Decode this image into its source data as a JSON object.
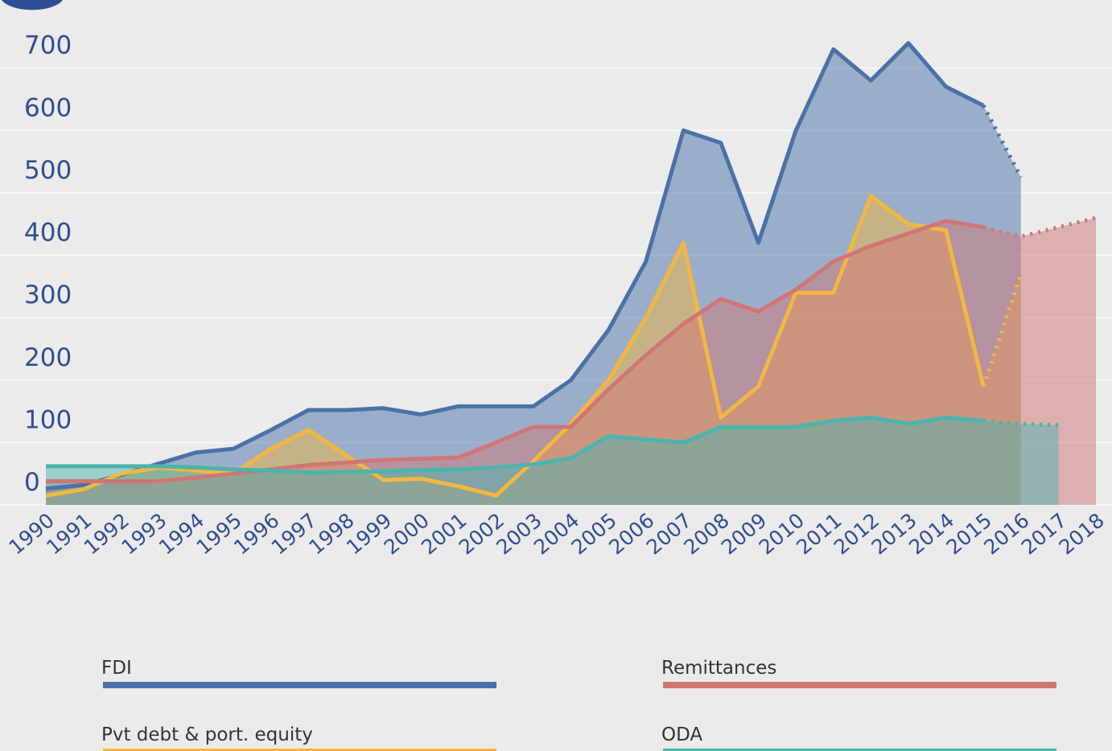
{
  "chart_data": {
    "type": "area-line",
    "categories": [
      "1990",
      "1991",
      "1992",
      "1993",
      "1994",
      "1995",
      "1996",
      "1997",
      "1998",
      "1999",
      "2000",
      "2001",
      "2002",
      "2003",
      "2004",
      "2005",
      "2006",
      "2007",
      "2008",
      "2009",
      "2010",
      "2011",
      "2012",
      "2013",
      "2014",
      "2015",
      "2016",
      "2017",
      "2018"
    ],
    "series": [
      {
        "name": "FDI",
        "color": "#4a72a8",
        "values": [
          26,
          32,
          48,
          66,
          84,
          90,
          120,
          152,
          152,
          155,
          145,
          158,
          158,
          158,
          200,
          280,
          390,
          600,
          580,
          420,
          600,
          730,
          680,
          740,
          670,
          640,
          525,
          null,
          null
        ]
      },
      {
        "name": "Pvt debt & port. equity",
        "color": "#f2b742",
        "values": [
          15,
          25,
          50,
          60,
          55,
          50,
          90,
          120,
          80,
          40,
          42,
          30,
          15,
          70,
          130,
          200,
          300,
          420,
          140,
          190,
          340,
          340,
          495,
          450,
          440,
          190,
          370,
          null,
          null
        ]
      },
      {
        "name": "Remittances",
        "color": "#d07575",
        "values": [
          38,
          38,
          38,
          38,
          44,
          50,
          57,
          64,
          68,
          72,
          74,
          76,
          100,
          125,
          125,
          185,
          240,
          290,
          330,
          310,
          345,
          390,
          415,
          435,
          455,
          445,
          430,
          445,
          460
        ]
      },
      {
        "name": "ODA",
        "color": "#4cb3ad",
        "values": [
          62,
          62,
          62,
          62,
          60,
          57,
          55,
          52,
          53,
          54,
          56,
          57,
          60,
          65,
          75,
          110,
          105,
          100,
          125,
          125,
          125,
          135,
          140,
          130,
          140,
          135,
          130,
          128,
          null
        ]
      }
    ],
    "projected_from": "2015",
    "ylim": [
      0,
      800
    ],
    "yticks": [
      0,
      100,
      200,
      300,
      400,
      500,
      600,
      700
    ],
    "grid": true
  }
}
